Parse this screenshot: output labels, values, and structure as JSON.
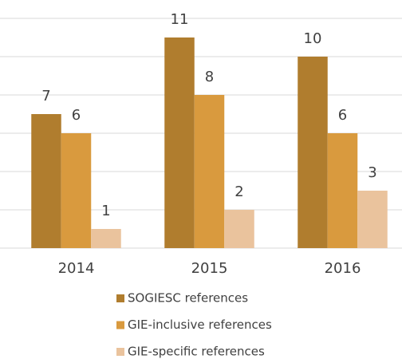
{
  "chart_data": {
    "type": "bar",
    "categories": [
      "2014",
      "2015",
      "2016"
    ],
    "series": [
      {
        "name": "SOGIESC references",
        "color": "#b07d2e",
        "values": [
          7,
          11,
          10
        ]
      },
      {
        "name": "GIE-inclusive references",
        "color": "#d99a3e",
        "values": [
          6,
          8,
          6
        ]
      },
      {
        "name": "GIE-specific references",
        "color": "#eac39d",
        "values": [
          1,
          2,
          3
        ]
      }
    ],
    "ylim": [
      0,
      12
    ],
    "yticks": [
      0,
      2,
      4,
      6,
      8,
      10,
      12
    ],
    "grid": true,
    "legend": "bottom"
  }
}
